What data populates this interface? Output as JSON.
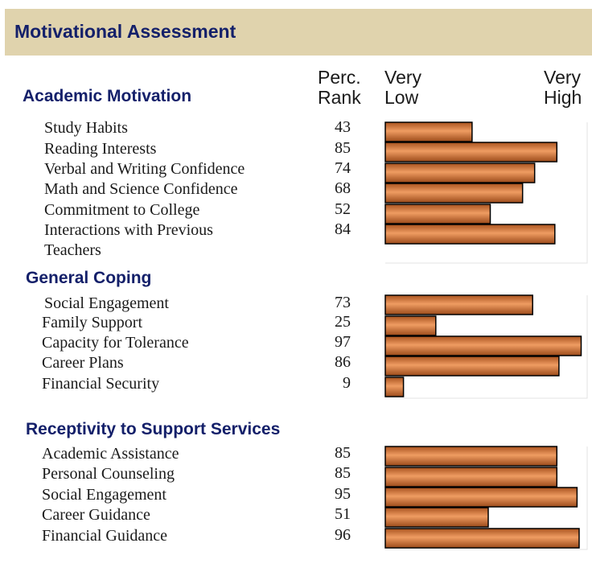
{
  "header": {
    "title": "Motivational Assessment"
  },
  "columns": {
    "rank_line1": "Perc.",
    "rank_line2": "Rank",
    "low_line1": "Very",
    "low_line2": "Low",
    "high_line1": "Very",
    "high_line2": "High"
  },
  "colors": {
    "bar_fill": "#c46a2e",
    "bar_highlight": "#e8935a",
    "bar_stroke": "#000000",
    "banner": "#e0d3ad",
    "section_title": "#14206a"
  },
  "chart_data": {
    "type": "bar",
    "orientation": "horizontal",
    "xlim": [
      0,
      100
    ],
    "groups": [
      {
        "title": "Academic Motivation",
        "rows": [
          {
            "label": "Study Habits",
            "value": 43
          },
          {
            "label": "Reading Interests",
            "value": 85
          },
          {
            "label": "Verbal and Writing Confidence",
            "value": 74
          },
          {
            "label": "Math and Science Confidence",
            "value": 68
          },
          {
            "label": "Commitment to College",
            "value": 52
          },
          {
            "label": "Interactions with Previous Teachers",
            "value": 84
          }
        ]
      },
      {
        "title": "General Coping",
        "rows": [
          {
            "label": "Social Engagement",
            "value": 73
          },
          {
            "label": "Family Support",
            "value": 25
          },
          {
            "label": "Capacity for Tolerance",
            "value": 97
          },
          {
            "label": "Career Plans",
            "value": 86
          },
          {
            "label": "Financial Security",
            "value": 9
          }
        ]
      },
      {
        "title": "Receptivity to Support Services",
        "rows": [
          {
            "label": "Academic Assistance",
            "value": 85
          },
          {
            "label": "Personal Counseling",
            "value": 85
          },
          {
            "label": "Social Engagement",
            "value": 95
          },
          {
            "label": "Career Guidance",
            "value": 51
          },
          {
            "label": "Financial Guidance",
            "value": 96
          }
        ]
      }
    ]
  }
}
